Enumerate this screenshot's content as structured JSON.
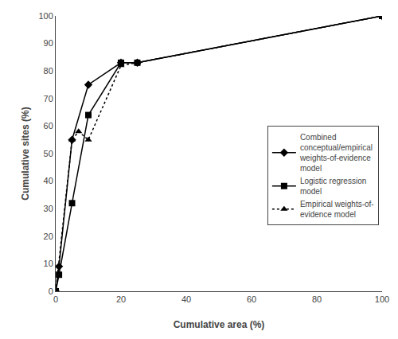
{
  "chart_data": {
    "type": "line",
    "xlabel": "Cumulative area (%)",
    "ylabel": "Cumulative sites (%)",
    "xlim": [
      0,
      100
    ],
    "ylim": [
      0,
      100
    ],
    "xticks": [
      0,
      20,
      40,
      60,
      80,
      100
    ],
    "yticks": [
      0,
      10,
      20,
      30,
      40,
      50,
      60,
      70,
      80,
      90,
      100
    ],
    "grid": false,
    "legend": "right",
    "series": [
      {
        "name": "Combined\nconceptual/empirical\nweights-of-evidence\nmodel",
        "color": "#000000",
        "marker": "diamond",
        "line_style": "solid",
        "x": [
          0,
          1,
          5,
          10,
          20,
          25,
          100
        ],
        "values": [
          0,
          9,
          55,
          75,
          83,
          83,
          100
        ]
      },
      {
        "name": "Logistic regression\nmodel",
        "color": "#000000",
        "marker": "square",
        "line_style": "solid",
        "x": [
          0,
          1,
          5,
          10,
          20,
          25,
          100
        ],
        "values": [
          0,
          6,
          32,
          64,
          83,
          83,
          100
        ]
      },
      {
        "name": "Empirical weights-of-\nevidence model",
        "color": "#000000",
        "marker": "triangle-up",
        "line_style": "dotted",
        "x": [
          0,
          5,
          7,
          10,
          20,
          25,
          100
        ],
        "values": [
          0,
          55,
          58,
          55,
          82,
          83,
          100
        ]
      }
    ]
  }
}
